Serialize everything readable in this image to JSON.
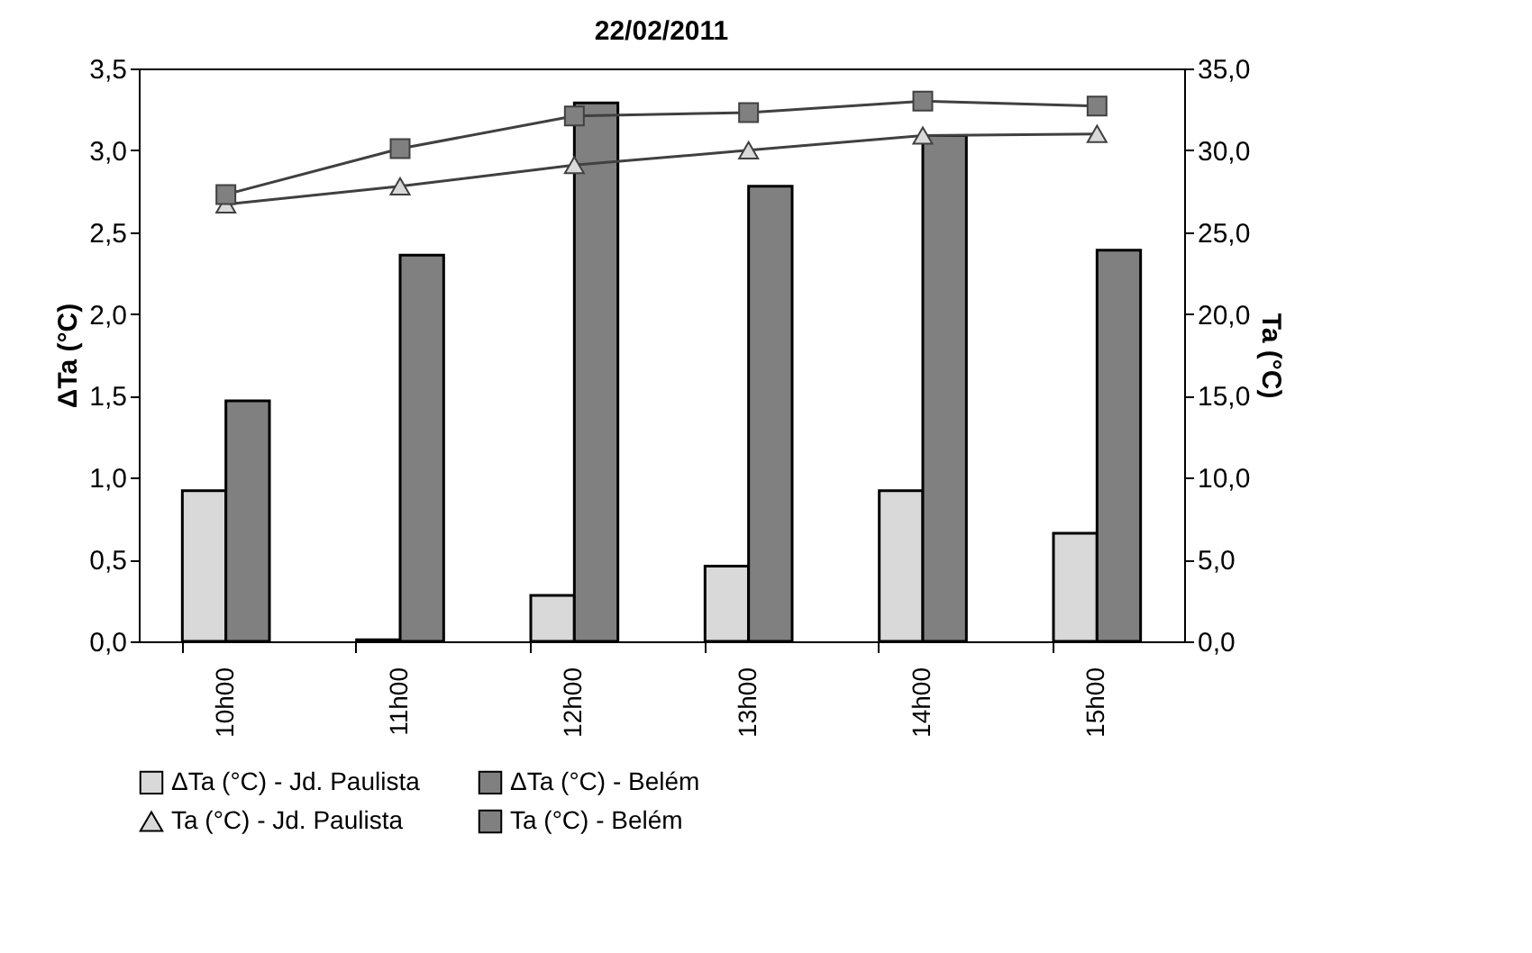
{
  "chart_data": {
    "type": "bar",
    "title": "22/02/2011",
    "ylabel": "ΔTa (°C)",
    "y2label": "Ta (°C)",
    "categories": [
      "10h00",
      "11h00",
      "12h00",
      "13h00",
      "14h00",
      "15h00"
    ],
    "series": [
      {
        "name": "ΔTa (°C) - Jd. Paulista",
        "type": "bar",
        "color": "#d9d9d9",
        "values": [
          0.92,
          0.01,
          0.28,
          0.46,
          0.92,
          0.66
        ]
      },
      {
        "name": "ΔTa (°C)  - Belém",
        "type": "bar",
        "color": "#808080",
        "values": [
          1.47,
          2.36,
          3.29,
          2.78,
          3.09,
          2.39
        ]
      },
      {
        "name": "Ta (°C) - Jd. Paulista",
        "type": "line",
        "axis": "y2",
        "marker": "triangle",
        "color": "#d9d9d9",
        "values": [
          26.7,
          27.8,
          29.1,
          30.0,
          30.9,
          31.0
        ]
      },
      {
        "name": "Ta (°C) - Belém",
        "type": "line",
        "axis": "y2",
        "marker": "square",
        "color": "#808080",
        "values": [
          27.3,
          30.1,
          32.1,
          32.3,
          33.0,
          32.7
        ]
      }
    ],
    "ylim": [
      0,
      3.5
    ],
    "yticks": [
      {
        "value": 0,
        "label": "0,0"
      },
      {
        "value": 0.5,
        "label": "0,5"
      },
      {
        "value": 1,
        "label": "1,0"
      },
      {
        "value": 1.5,
        "label": "1,5"
      },
      {
        "value": 2,
        "label": "2,0"
      },
      {
        "value": 2.5,
        "label": "2,5"
      },
      {
        "value": 3,
        "label": "3,0"
      },
      {
        "value": 3.5,
        "label": "3,5"
      }
    ],
    "y2lim": [
      0,
      35
    ],
    "y2ticks": [
      {
        "value": 0,
        "label": "0,0"
      },
      {
        "value": 5,
        "label": "5,0"
      },
      {
        "value": 10,
        "label": "10,0"
      },
      {
        "value": 15,
        "label": "15,0"
      },
      {
        "value": 20,
        "label": "20,0"
      },
      {
        "value": 25,
        "label": "25,0"
      },
      {
        "value": 30,
        "label": "30,0"
      },
      {
        "value": 35,
        "label": "35,0"
      }
    ],
    "grid": false,
    "legend": "bottom"
  }
}
